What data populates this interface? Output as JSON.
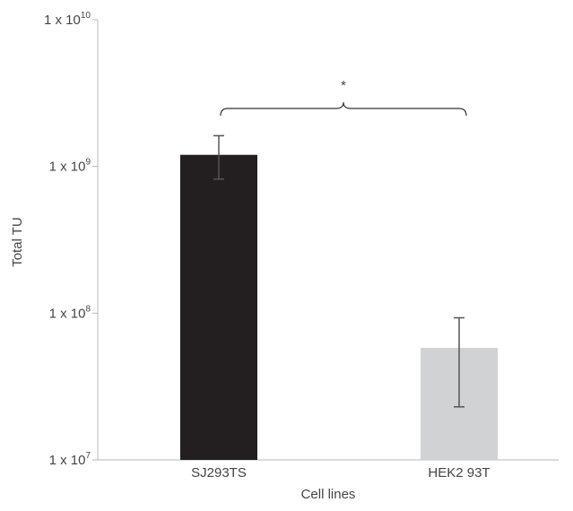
{
  "chart_data": {
    "type": "bar",
    "title": "",
    "xlabel": "Cell lines",
    "ylabel": "Total TU",
    "yscale": "log",
    "ylim": [
      10000000,
      10000000000
    ],
    "grid": false,
    "legend": "none",
    "categories": [
      "SJ293TS",
      "HEK2 93T"
    ],
    "values": [
      1200000000,
      58000000
    ],
    "errors_upper": [
      1620000000,
      93000000
    ],
    "errors_lower": [
      820000000,
      23000000
    ],
    "bar_colors": [
      "#231f20",
      "#d1d2d4"
    ],
    "yticks": [
      {
        "value": 10000000,
        "base": "1 x 10",
        "exp": "7"
      },
      {
        "value": 100000000,
        "base": "1 x 10",
        "exp": "8"
      },
      {
        "value": 1000000000,
        "base": "1 x 10",
        "exp": "9"
      },
      {
        "value": 10000000000,
        "base": "1 x 10",
        "exp": "10"
      }
    ],
    "annotations": [
      {
        "text": "*",
        "type": "significance-bracket",
        "between": [
          "SJ293TS",
          "HEK2 93T"
        ]
      }
    ]
  }
}
